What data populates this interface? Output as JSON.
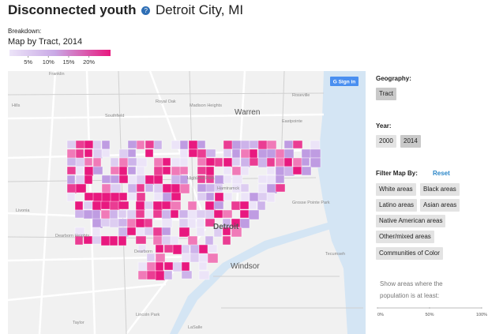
{
  "header": {
    "title": "Disconnected youth",
    "location": "Detroit City, MI"
  },
  "breakdown": {
    "label": "Breakdown:",
    "value": "Map by Tract, 2014"
  },
  "legend": {
    "ticks": [
      {
        "value": 5,
        "label": "5%"
      },
      {
        "value": 10,
        "label": "10%"
      },
      {
        "value": 15,
        "label": "15%"
      },
      {
        "value": 20,
        "label": "20%"
      }
    ]
  },
  "map": {
    "sign_in": "G Sign in",
    "places": [
      "Franklin",
      "Hills",
      "Royal Oak",
      "Madison Heights",
      "Roseville",
      "Warren",
      "Southfield",
      "Eastpointe",
      "Livonia",
      "Highland Park",
      "Hamtramck",
      "Grosse Pointe Park",
      "Dearborn Heights",
      "Detroit",
      "Dearborn",
      "Windsor",
      "Tecumseh",
      "Lincoln Park",
      "Taylor",
      "LaSalle"
    ]
  },
  "sidebar": {
    "geography": {
      "label": "Geography:",
      "options": [
        "Tract"
      ]
    },
    "year": {
      "label": "Year:",
      "options": [
        "2000",
        "2014"
      ]
    },
    "filter": {
      "label": "Filter Map By:",
      "reset": "Reset",
      "options": [
        "White areas",
        "Black areas",
        "Latino areas",
        "Asian areas",
        "Native American areas",
        "Other/mixed areas",
        "Communities of Color"
      ]
    },
    "threshold": {
      "label": "Show areas where the population is at least:",
      "ticks": [
        {
          "value": 0,
          "label": "0%"
        },
        {
          "value": 50,
          "label": "50%"
        },
        {
          "value": 100,
          "label": "100%"
        }
      ]
    }
  }
}
